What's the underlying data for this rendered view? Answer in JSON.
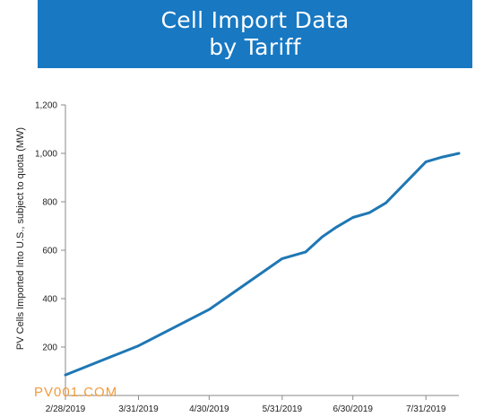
{
  "banner": {
    "title_line1": "Cell Import Data",
    "title_line2": "by Tariff",
    "background": "#1878c2"
  },
  "watermark": "PV001.COM",
  "chart_data": {
    "type": "line",
    "title": "",
    "xlabel": "",
    "ylabel": "PV Cells Imported Into U.S., subject to quota (MW)",
    "ylim": [
      0,
      1200
    ],
    "yticks": [
      200,
      400,
      600,
      800,
      1000,
      1200
    ],
    "ytick_labels": [
      "200",
      "400",
      "600",
      "800",
      "1,000",
      "1,200"
    ],
    "xlim": [
      "2019-02-28",
      "2019-08-14"
    ],
    "xticks": [
      "2019-02-28",
      "2019-03-31",
      "2019-04-30",
      "2019-05-31",
      "2019-06-30",
      "2019-07-31"
    ],
    "xtick_labels": [
      "2/28/2019",
      "3/31/2019",
      "4/30/2019",
      "5/31/2019",
      "6/30/2019",
      "7/31/2019"
    ],
    "grid": false,
    "legend": "none",
    "series": [
      {
        "color": "#1f77b4",
        "x": [
          "2019-02-28",
          "2019-03-31",
          "2019-04-30",
          "2019-05-31",
          "2019-06-10",
          "2019-06-17",
          "2019-06-23",
          "2019-06-30",
          "2019-07-07",
          "2019-07-14",
          "2019-07-31",
          "2019-08-07",
          "2019-08-14"
        ],
        "values": [
          85,
          205,
          355,
          565,
          593,
          655,
          695,
          735,
          755,
          795,
          965,
          985,
          1000
        ]
      }
    ]
  }
}
